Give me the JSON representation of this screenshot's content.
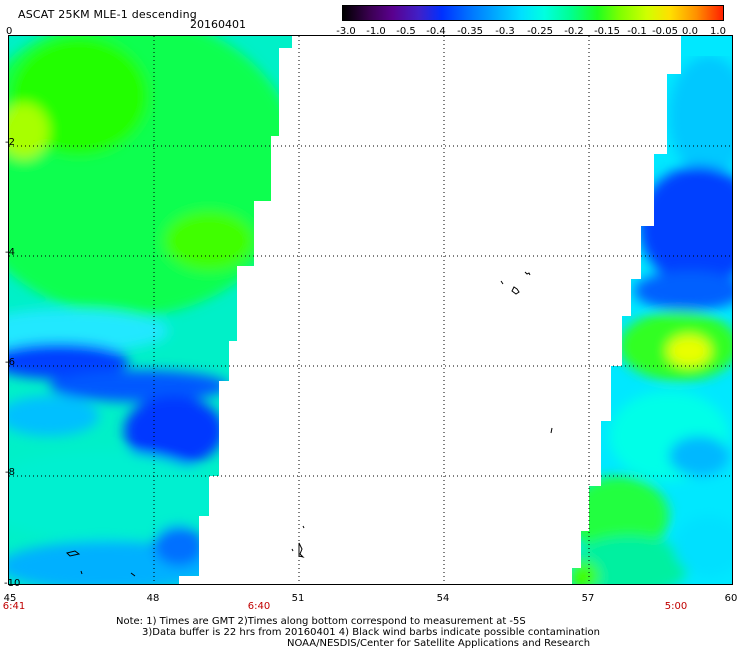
{
  "header": {
    "title": "ASCAT 25KM MLE-1 descending",
    "date": "20160401"
  },
  "colorbar": {
    "labels": [
      "-3.0",
      "-1.0",
      "-0.5",
      "-0.4",
      "-0.35",
      "-0.3",
      "-0.25",
      "-0.2",
      "-0.15",
      "-0.1",
      "-0.05",
      "0.0",
      "1.0"
    ]
  },
  "map": {
    "y_ticks": [
      "0",
      "-2",
      "-4",
      "-6",
      "-8",
      "-10"
    ],
    "x_ticks": [
      "45",
      "48",
      "51",
      "54",
      "57",
      "60"
    ],
    "time_labels": [
      "6:41",
      "6:40",
      "5:00"
    ]
  },
  "notes": {
    "line1": "Note: 1) Times are GMT 2)Times along bottom correspond to measurement at -5S",
    "line2": "3)Data buffer is 22 hrs from 20160401 4) Black wind barbs indicate possible contamination",
    "line3": "NOAA/NESDIS/Center for Satellite Applications and Research"
  }
}
